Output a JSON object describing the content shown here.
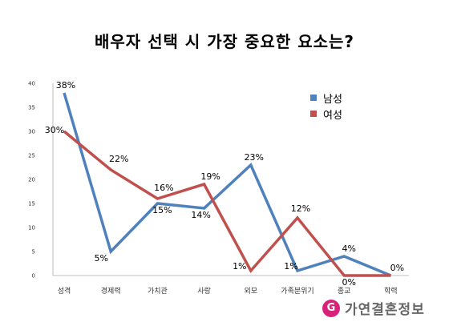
{
  "chart_data": {
    "type": "line",
    "title": "배우자 선택 시 가장 중요한 요소는?",
    "categories": [
      "성격",
      "경제력",
      "가치관",
      "사랑",
      "외모",
      "가족분위기",
      "종교",
      "학력"
    ],
    "series": [
      {
        "name": "남성",
        "values": [
          38,
          5,
          15,
          14,
          23,
          1,
          4,
          0
        ],
        "color": "#4f81bd",
        "labels": [
          "38%",
          "5%",
          "15%",
          "14%",
          "23%",
          "1%",
          "4%",
          "0%"
        ]
      },
      {
        "name": "여성",
        "values": [
          30,
          22,
          16,
          19,
          1,
          12,
          0,
          0
        ],
        "color": "#c0504d",
        "labels": [
          "30%",
          "22%",
          "16%",
          "19%",
          "1%",
          "12%",
          "0%",
          "0%"
        ]
      }
    ],
    "ylim": [
      0,
      40
    ],
    "yticks": [
      "0",
      "5",
      "10",
      "15",
      "20",
      "25",
      "30",
      "35",
      "40"
    ],
    "grid": false,
    "legend_position": "top-right"
  },
  "brand": {
    "logo_letter": "G",
    "name": "가연결혼정보",
    "logo_color": "#d9217a"
  }
}
